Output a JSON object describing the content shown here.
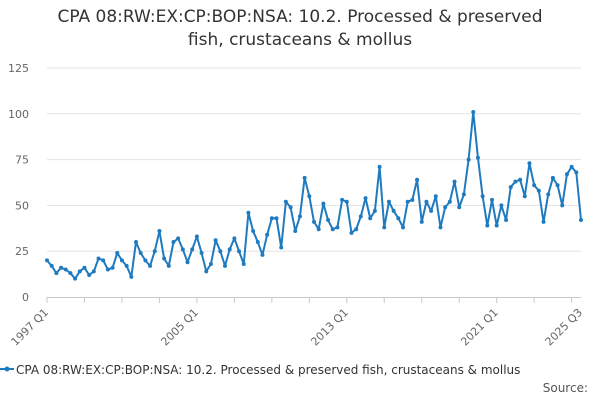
{
  "title_line1": "CPA 08:RW:EX:CP:BOP:NSA: 10.2. Processed & preserved",
  "title_line2": "fish, crustaceans & mollus",
  "source_label": "Source:",
  "chart_data": {
    "type": "line",
    "title": "CPA 08:RW:EX:CP:BOP:NSA: 10.2. Processed & preserved fish, crustaceans & mollus",
    "xlabel": "",
    "ylabel": "",
    "x_start": "1997 Q1",
    "x_end": "2025 Q3",
    "xticks": [
      "1997 Q1",
      "2005 Q1",
      "2013 Q1",
      "2021 Q1",
      "2025 Q3"
    ],
    "yticks": [
      0,
      25,
      50,
      75,
      100,
      125
    ],
    "ylim": [
      0,
      125
    ],
    "grid": "horizontal",
    "legend": "bottom",
    "color": "#1f7bbf",
    "series": [
      {
        "name": "CPA 08:RW:EX:CP:BOP:NSA: 10.2. Processed & preserved fish, crustaceans & mollus",
        "values": [
          20,
          17,
          13,
          16,
          15,
          13,
          10,
          14,
          16,
          12,
          14,
          21,
          20,
          15,
          16,
          24,
          20,
          17,
          11,
          30,
          24,
          20,
          17,
          25,
          36,
          21,
          17,
          30,
          32,
          26,
          19,
          26,
          33,
          24,
          14,
          18,
          31,
          25,
          17,
          26,
          32,
          25,
          18,
          46,
          36,
          30,
          23,
          34,
          43,
          43,
          27,
          52,
          49,
          36,
          44,
          65,
          55,
          41,
          37,
          51,
          42,
          37,
          38,
          53,
          52,
          35,
          37,
          44,
          54,
          43,
          47,
          71,
          38,
          52,
          47,
          43,
          38,
          52,
          53,
          64,
          41,
          52,
          47,
          55,
          38,
          49,
          52,
          63,
          49,
          56,
          75,
          101,
          76,
          55,
          39,
          53,
          39,
          50,
          42,
          60,
          63,
          64,
          55,
          73,
          61,
          58,
          41,
          56,
          65,
          61,
          50,
          67,
          71,
          68,
          42
        ]
      }
    ]
  }
}
